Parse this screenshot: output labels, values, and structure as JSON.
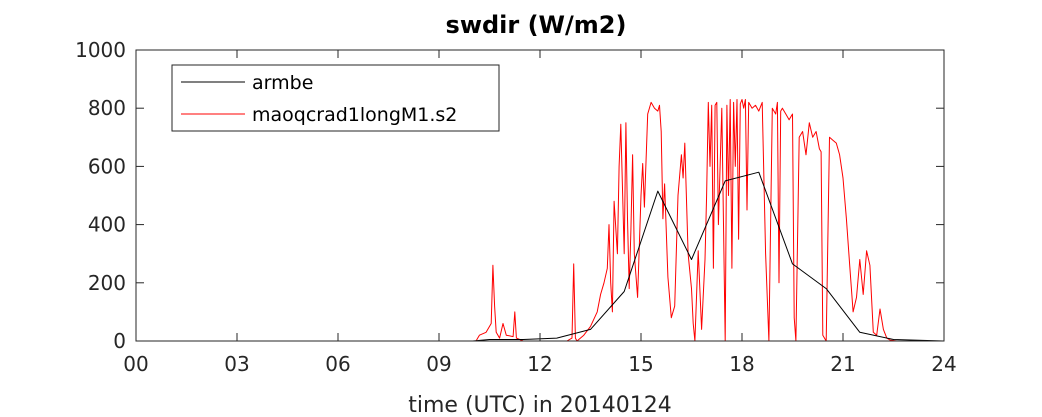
{
  "chart_data": {
    "type": "line",
    "title": "swdir  (W/m2)",
    "xlabel": "time (UTC) in 20140124",
    "ylabel": "",
    "xlim": [
      0,
      24
    ],
    "ylim": [
      0,
      1000
    ],
    "xticks": [
      0,
      3,
      6,
      9,
      12,
      15,
      18,
      21,
      24
    ],
    "xtick_labels": [
      "00",
      "03",
      "06",
      "09",
      "12",
      "15",
      "18",
      "21",
      "24"
    ],
    "yticks": [
      0,
      200,
      400,
      600,
      800,
      1000
    ],
    "ytick_labels": [
      "0",
      "200",
      "400",
      "600",
      "800",
      "1000"
    ],
    "grid": false,
    "legend_position": "top-left",
    "series": [
      {
        "name": "armbe",
        "color": "#000000",
        "x": [
          0,
          10,
          10.5,
          11.5,
          12.5,
          13.5,
          14.5,
          15.5,
          16.5,
          17.5,
          18.5,
          19.5,
          20.5,
          21.5,
          22.5,
          24
        ],
        "y": [
          0,
          0,
          5,
          5,
          10,
          40,
          170,
          515,
          280,
          550,
          580,
          265,
          180,
          30,
          5,
          0
        ]
      },
      {
        "name": "maoqcrad1longM1.s2",
        "color": "#ff0000",
        "x": [
          0,
          10.1,
          10.2,
          10.4,
          10.55,
          10.6,
          10.65,
          10.7,
          10.8,
          10.9,
          11,
          11.2,
          11.25,
          11.3,
          11.4,
          11.5,
          12,
          12.5,
          12.8,
          12.95,
          13,
          13.05,
          13.1,
          13.3,
          13.5,
          13.7,
          13.8,
          13.9,
          14,
          14.05,
          14.1,
          14.15,
          14.2,
          14.3,
          14.35,
          14.4,
          14.5,
          14.55,
          14.6,
          14.65,
          14.7,
          14.75,
          14.8,
          14.9,
          15,
          15.05,
          15.1,
          15.2,
          15.3,
          15.4,
          15.5,
          15.55,
          15.6,
          15.65,
          15.7,
          15.8,
          15.9,
          16,
          16.1,
          16.2,
          16.25,
          16.3,
          16.4,
          16.5,
          16.55,
          16.6,
          16.7,
          16.8,
          16.9,
          16.95,
          17,
          17.05,
          17.1,
          17.15,
          17.2,
          17.25,
          17.3,
          17.4,
          17.5,
          17.55,
          17.6,
          17.65,
          17.7,
          17.75,
          17.8,
          17.85,
          17.9,
          17.95,
          18,
          18.05,
          18.1,
          18.15,
          18.2,
          18.3,
          18.4,
          18.5,
          18.6,
          18.7,
          18.8,
          18.9,
          19,
          19.05,
          19.1,
          19.15,
          19.2,
          19.3,
          19.4,
          19.5,
          19.55,
          19.6,
          19.7,
          19.8,
          19.9,
          20,
          20.1,
          20.2,
          20.3,
          20.35,
          20.4,
          20.5,
          20.6,
          20.7,
          20.8,
          20.9,
          21,
          21.1,
          21.2,
          21.3,
          21.4,
          21.5,
          21.6,
          21.7,
          21.8,
          21.9,
          22,
          22.1,
          22.2,
          22.3,
          22.4,
          22.6,
          24
        ],
        "y": [
          0,
          0,
          20,
          30,
          60,
          260,
          120,
          30,
          10,
          60,
          20,
          15,
          100,
          10,
          5,
          0,
          0,
          0,
          0,
          10,
          265,
          10,
          0,
          20,
          50,
          100,
          160,
          200,
          250,
          400,
          200,
          100,
          480,
          300,
          600,
          745,
          300,
          750,
          420,
          180,
          380,
          640,
          300,
          150,
          500,
          610,
          460,
          780,
          820,
          800,
          790,
          810,
          720,
          420,
          540,
          220,
          80,
          120,
          500,
          640,
          560,
          680,
          300,
          180,
          60,
          0,
          310,
          40,
          280,
          500,
          820,
          600,
          810,
          250,
          810,
          820,
          400,
          800,
          0,
          810,
          500,
          830,
          250,
          820,
          600,
          830,
          350,
          815,
          830,
          800,
          830,
          450,
          820,
          800,
          810,
          790,
          820,
          300,
          0,
          800,
          780,
          820,
          200,
          790,
          800,
          780,
          760,
          780,
          80,
          0,
          700,
          720,
          640,
          750,
          700,
          720,
          660,
          650,
          20,
          0,
          700,
          690,
          680,
          640,
          560,
          420,
          260,
          100,
          150,
          280,
          160,
          310,
          260,
          30,
          20,
          110,
          40,
          10,
          3,
          0,
          0
        ]
      }
    ]
  }
}
